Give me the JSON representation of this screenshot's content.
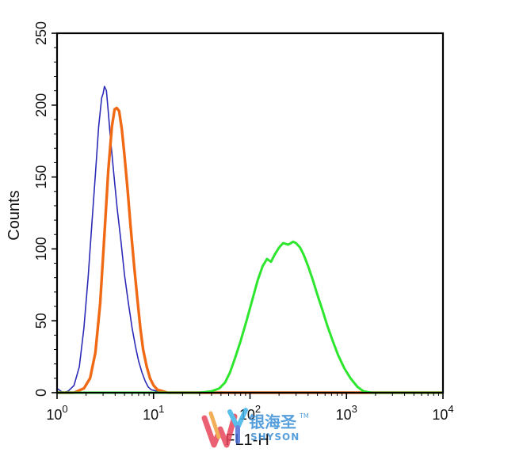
{
  "chart_data": {
    "type": "line",
    "xlabel": "FL1-H",
    "ylabel": "Counts",
    "x_scale": "log",
    "xlim": [
      1,
      10000
    ],
    "ylim": [
      0,
      250
    ],
    "y_ticks": [
      0,
      50,
      100,
      150,
      200,
      250
    ],
    "x_ticks": [
      {
        "value": 1,
        "base": "10",
        "exp": "0"
      },
      {
        "value": 10,
        "base": "10",
        "exp": "1"
      },
      {
        "value": 100,
        "base": "10",
        "exp": "2"
      },
      {
        "value": 1000,
        "base": "10",
        "exp": "3"
      },
      {
        "value": 10000,
        "base": "10",
        "exp": "4"
      }
    ],
    "grid": false,
    "legend": "none",
    "series": [
      {
        "color": "#2b2bb8",
        "line_width": 1.6,
        "x": [
          1.0,
          1.15,
          1.3,
          1.5,
          1.7,
          1.9,
          2.1,
          2.3,
          2.5,
          2.7,
          2.9,
          3.0,
          3.1,
          3.25,
          3.4,
          3.6,
          3.9,
          4.2,
          4.6,
          5.0,
          5.5,
          6.0,
          6.5,
          7.0,
          7.6,
          8.2,
          8.8,
          9.5,
          11,
          13,
          20,
          100,
          1000,
          10000
        ],
        "y": [
          3,
          0,
          1,
          5,
          18,
          45,
          80,
          118,
          152,
          185,
          205,
          208,
          213,
          210,
          195,
          175,
          150,
          128,
          105,
          82,
          62,
          45,
          32,
          22,
          14,
          8,
          4,
          2,
          1,
          0,
          0,
          0,
          0,
          0
        ]
      },
      {
        "color": "#f06a16",
        "line_width": 3.4,
        "x": [
          1.0,
          1.5,
          1.9,
          2.2,
          2.5,
          2.8,
          3.1,
          3.4,
          3.7,
          3.95,
          4.15,
          4.4,
          4.7,
          5.0,
          5.4,
          5.8,
          6.3,
          6.8,
          7.3,
          7.8,
          8.5,
          9.2,
          10,
          11,
          12.5,
          14,
          20,
          100,
          1000,
          10000
        ],
        "y": [
          0,
          0,
          3,
          10,
          28,
          62,
          110,
          155,
          185,
          197,
          198,
          196,
          183,
          165,
          140,
          115,
          88,
          65,
          45,
          30,
          18,
          10,
          5,
          2,
          1,
          0,
          0,
          0,
          0,
          0
        ]
      },
      {
        "color": "#2de62d",
        "line_width": 3.0,
        "x": [
          1.0,
          10,
          30,
          40,
          48,
          55,
          62,
          70,
          80,
          92,
          105,
          120,
          135,
          150,
          165,
          180,
          200,
          220,
          250,
          280,
          300,
          330,
          360,
          400,
          450,
          500,
          560,
          630,
          720,
          820,
          950,
          1100,
          1300,
          1500,
          1800,
          2200,
          3000,
          5000,
          10000
        ],
        "y": [
          0,
          0,
          0,
          1,
          3,
          7,
          14,
          24,
          36,
          50,
          64,
          78,
          88,
          93,
          91,
          96,
          101,
          104,
          103,
          105,
          104,
          101,
          96,
          88,
          78,
          68,
          58,
          47,
          36,
          26,
          17,
          10,
          4,
          1,
          0,
          0,
          0,
          0,
          0
        ]
      }
    ]
  },
  "watermark": {
    "brand_cn": "银海圣",
    "brand_en": "SHYSON",
    "trademark": "TM",
    "colors": [
      "#e8455a",
      "#f2a23a",
      "#3fb3e8",
      "#4b6fd6"
    ]
  }
}
